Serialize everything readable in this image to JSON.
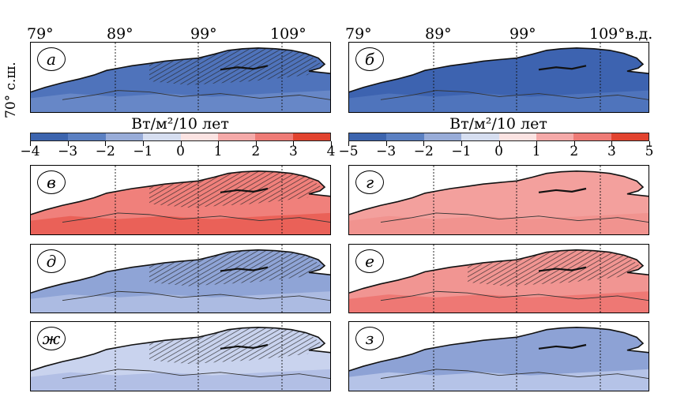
{
  "top_lon_labels_left": [
    "79°",
    "89°",
    "99°",
    "109°"
  ],
  "top_lon_labels_right": [
    "79°",
    "89°",
    "99°",
    "109°в.д."
  ],
  "lat_label": "70° с.ш.",
  "colorbar_left": {
    "title": "Вт/м²/10 лет",
    "ticks": [
      "−4",
      "−3",
      "−2",
      "−1",
      "0",
      "1",
      "2",
      "3",
      "4"
    ],
    "colors": [
      "#3c64ae",
      "#5b80c2",
      "#98acd8",
      "#d6def0",
      "#fbe3e2",
      "#f5aaa9",
      "#ee7b76",
      "#e2432f"
    ]
  },
  "colorbar_right": {
    "title": "Вт/м²/10 лет",
    "ticks": [
      "−5",
      "−3",
      "−2",
      "−1",
      "0",
      "1",
      "2",
      "3",
      "5"
    ],
    "colors": [
      "#3c64ae",
      "#5b80c2",
      "#98acd8",
      "#d6def0",
      "#fbe3e2",
      "#f5aaa9",
      "#ee7b76",
      "#e2432f"
    ]
  },
  "panels": [
    {
      "label": "а",
      "fill": "#4f73bb",
      "fill2": "#6f8dcb",
      "hatch": true
    },
    {
      "label": "б",
      "fill": "#3d63b0",
      "fill2": "#5679c0",
      "hatch": false
    },
    {
      "label": "в",
      "fill": "#f0807b",
      "fill2": "#e8574c",
      "hatch": true
    },
    {
      "label": "г",
      "fill": "#f3a09d",
      "fill2": "#f08f8b",
      "hatch": false
    },
    {
      "label": "д",
      "fill": "#8fa4d6",
      "fill2": "#b5c3e6",
      "hatch": true
    },
    {
      "label": "е",
      "fill": "#f19592",
      "fill2": "#ec6f69",
      "hatch": true
    },
    {
      "label": "ж",
      "fill": "#c9d3ee",
      "fill2": "#a9b8e2",
      "hatch": true
    },
    {
      "label": "з",
      "fill": "#8da2d5",
      "fill2": "#c3cdec",
      "hatch": false
    }
  ]
}
